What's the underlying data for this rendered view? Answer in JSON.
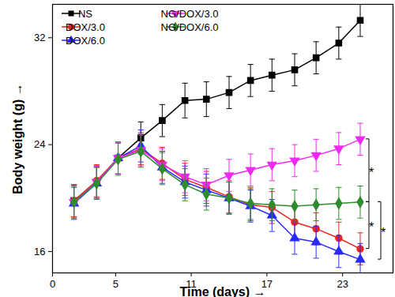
{
  "chart_data": {
    "type": "line",
    "xlabel": "Time (days)",
    "ylabel": "Body weight (g)",
    "xlim": [
      0,
      27
    ],
    "ylim": [
      14.4,
      34.5
    ],
    "xticks": [
      0,
      5,
      11,
      17,
      23
    ],
    "yticks": [
      16,
      24,
      32
    ],
    "legend": "upper left",
    "x": [
      1.7,
      3.5,
      5.2,
      7,
      8.7,
      10.5,
      12.2,
      14,
      15.7,
      17.4,
      19.2,
      20.9,
      22.7,
      24.4
    ],
    "series": [
      {
        "name": "NS",
        "color": "#000000",
        "marker": "square",
        "values": [
          19.8,
          21.2,
          23.0,
          24.5,
          25.8,
          27.3,
          27.4,
          27.9,
          28.8,
          29.2,
          29.6,
          30.5,
          31.6,
          33.3
        ],
        "errors": [
          1.2,
          1.2,
          1.2,
          1.2,
          1.2,
          1.3,
          1.3,
          1.2,
          1.2,
          1.2,
          1.2,
          1.2,
          1.2,
          1.2
        ]
      },
      {
        "name": "DOX/3.0",
        "color": "#e8261f",
        "marker": "circle",
        "values": [
          19.8,
          21.3,
          23.0,
          23.7,
          22.6,
          21.4,
          20.8,
          20.1,
          19.5,
          19.3,
          18.2,
          17.7,
          17.0,
          16.2
        ],
        "errors": [
          1.2,
          1.2,
          1.2,
          1.2,
          1.2,
          1.2,
          1.2,
          1.2,
          1.2,
          1.2,
          1.2,
          1.2,
          1.2,
          1.2
        ]
      },
      {
        "name": "DOX/6.0",
        "color": "#2a2aff",
        "marker": "triangle",
        "values": [
          19.6,
          21.1,
          23.0,
          23.9,
          22.3,
          21.2,
          20.6,
          20.0,
          19.4,
          18.7,
          17.0,
          16.7,
          16.0,
          15.4
        ],
        "errors": [
          1.2,
          1.2,
          1.2,
          1.2,
          1.2,
          1.2,
          1.2,
          1.2,
          1.2,
          1.2,
          1.2,
          1.2,
          1.2,
          1.2
        ]
      },
      {
        "name": "NG/DOX/3.0",
        "color": "#ee2aee",
        "marker": "triangle-down",
        "values": [
          19.7,
          21.2,
          23.0,
          23.6,
          22.5,
          21.6,
          21.0,
          21.7,
          22.1,
          22.5,
          22.8,
          23.2,
          23.7,
          24.4
        ],
        "errors": [
          1.2,
          1.2,
          1.2,
          1.2,
          1.2,
          1.2,
          1.2,
          1.2,
          1.2,
          1.2,
          1.2,
          1.2,
          1.2,
          1.2
        ]
      },
      {
        "name": "NG/DOX/6.0",
        "color": "#2e8b2e",
        "marker": "diamond",
        "values": [
          19.7,
          21.1,
          22.9,
          23.5,
          22.2,
          21.0,
          20.3,
          20.0,
          19.6,
          19.5,
          19.4,
          19.5,
          19.6,
          19.7
        ],
        "errors": [
          1.2,
          1.2,
          1.2,
          1.2,
          1.2,
          1.2,
          1.2,
          1.2,
          1.2,
          1.2,
          1.2,
          1.2,
          1.2,
          1.2
        ]
      }
    ],
    "annotations": [
      {
        "text": "*",
        "y1": 24.4,
        "y2": 19.7
      },
      {
        "text": "*",
        "y1": 19.7,
        "y2": 16.2
      },
      {
        "text": "*",
        "y1": 19.7,
        "y2": 15.4
      }
    ]
  }
}
